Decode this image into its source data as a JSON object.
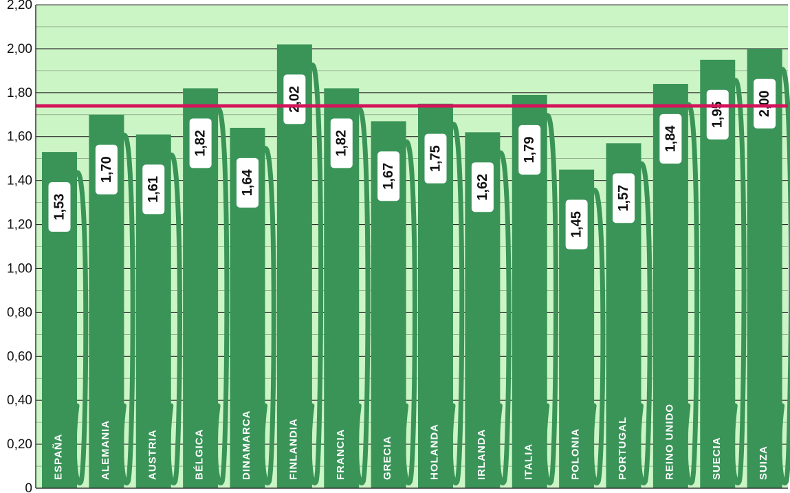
{
  "chart_data": {
    "type": "bar",
    "categories": [
      "ESPAÑA",
      "ALEMANIA",
      "AUSTRIA",
      "BÉLGICA",
      "DINAMARCA",
      "FINLANDIA",
      "FRANCIA",
      "GRECIA",
      "HOLANDA",
      "IRLANDA",
      "ITALIA",
      "POLONIA",
      "PORTUGAL",
      "REINO UNIDO",
      "SUECIA",
      "SUIZA"
    ],
    "values": [
      1.53,
      1.7,
      1.61,
      1.82,
      1.64,
      2.02,
      1.82,
      1.67,
      1.75,
      1.62,
      1.79,
      1.45,
      1.57,
      1.84,
      1.95,
      2.0
    ],
    "value_labels": [
      "1,53",
      "1,70",
      "1,61",
      "1,82",
      "1,64",
      "2,02",
      "1,82",
      "1,67",
      "1,75",
      "1,62",
      "1,79",
      "1,45",
      "1,57",
      "1,84",
      "1,95",
      "2,00"
    ],
    "y_ticks": [
      {
        "value": 0,
        "label": "0"
      },
      {
        "value": 0.2,
        "label": "0,20"
      },
      {
        "value": 0.4,
        "label": "0,40"
      },
      {
        "value": 0.6,
        "label": "0,60"
      },
      {
        "value": 0.8,
        "label": "0,80"
      },
      {
        "value": 1.0,
        "label": "1,00"
      },
      {
        "value": 1.2,
        "label": "1,20"
      },
      {
        "value": 1.4,
        "label": "1,40"
      },
      {
        "value": 1.6,
        "label": "1,60"
      },
      {
        "value": 1.8,
        "label": "1,80"
      },
      {
        "value": 2.0,
        "label": "2,00"
      },
      {
        "value": 2.2,
        "label": "2,20"
      }
    ],
    "ylim": [
      0,
      2.2
    ],
    "reference_line": 1.74,
    "grid": true,
    "title": "",
    "xlabel": "",
    "ylabel": ""
  },
  "colors": {
    "plot_background": "#ccf5c5",
    "bar": "#3a9458",
    "reference_line": "#d4145a",
    "gridline": "#2e2e2e",
    "label_box": "#ffffff",
    "category_text": "#ffffff"
  }
}
